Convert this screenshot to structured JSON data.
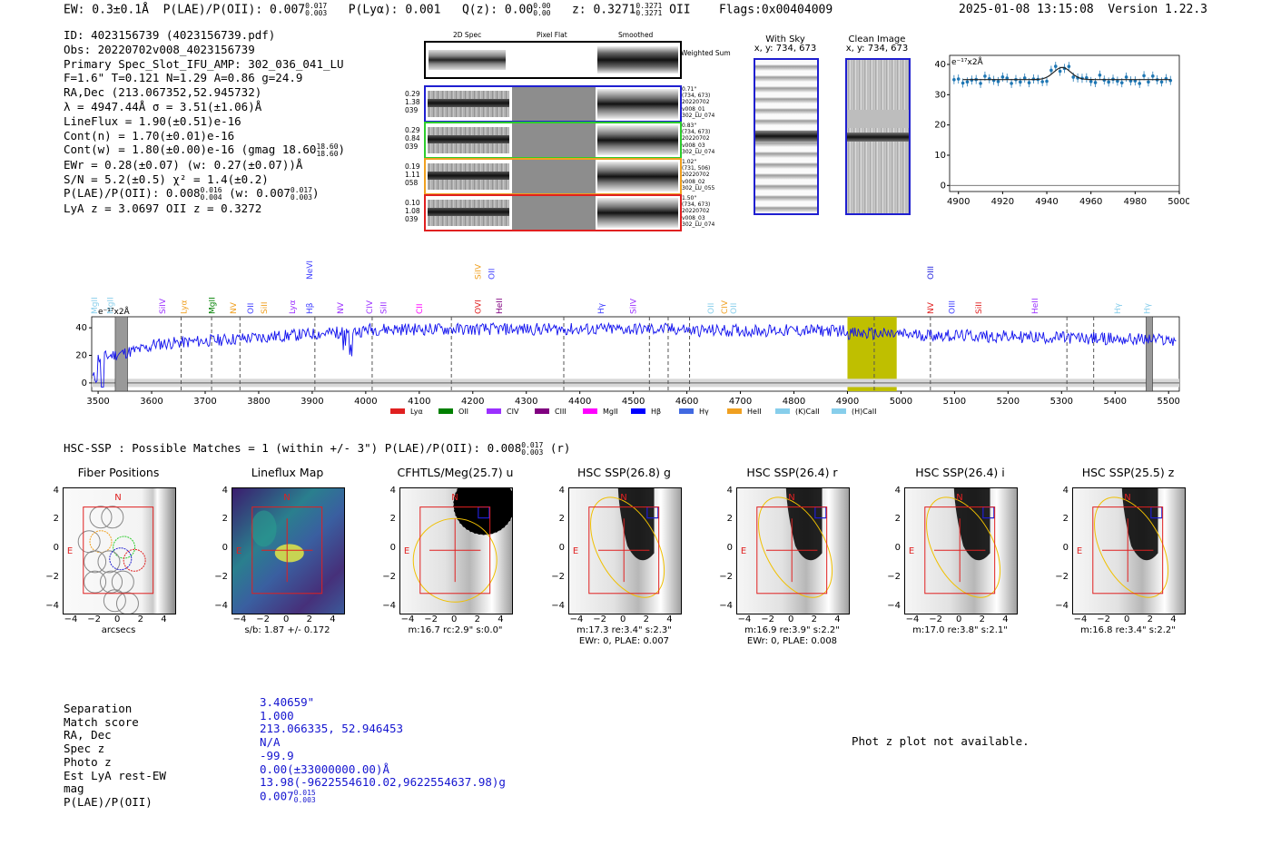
{
  "header": {
    "ew": "EW: 0.3±0.1Å",
    "plae": "P(LAE)/P(OII): 0.007",
    "plae_hi": "0.017",
    "plae_lo": "0.003",
    "plya": "P(Lyα): 0.001",
    "qz": "Q(z): 0.00",
    "qz_hi": "0.00",
    "qz_lo": "0.00",
    "z": "z: 0.3271",
    "z_hi": "0.3271",
    "z_lo": "0.3271",
    "z_line": "OII",
    "flags": "Flags:0x00404009",
    "datetime": "2025-01-08 13:15:08",
    "version": "Version 1.22.3"
  },
  "info": {
    "id": "ID: 4023156739 (4023156739.pdf)",
    "obs": "Obs: 20220702v008_4023156739",
    "primary": "Primary Spec_Slot_IFU_AMP: 302_036_041_LU",
    "params": "F=1.6\" T=0.121 N=1.29 A=0.86 g=24.9",
    "radec": "RA,Dec (213.067352,52.945732)",
    "lambda": "λ = 4947.44Å  σ = 3.51(±1.06)Å",
    "lineflux": "LineFlux = 1.90(±0.51)e-16",
    "contn": "Cont(n) = 1.70(±0.01)e-16",
    "contw": "Cont(w) = 1.80(±0.00)e-16 (gmag 18.60",
    "contw_hi": "18.60",
    "contw_lo": "18.60",
    "ewr": "EWr = 0.28(±0.07) (w: 0.27(±0.07))Å",
    "sn": "S/N = 5.2(±0.5)  χ² = 1.4(±0.2)",
    "plae": "P(LAE)/P(OII): 0.008",
    "plae_hi": "0.016",
    "plae_lo": "0.004",
    "plae_w": "(w: 0.007",
    "plae_w_hi": "0.017",
    "plae_w_lo": "0.003",
    "lya": "LyA z = 3.0697  OII z = 0.3272"
  },
  "cutouts": {
    "col_headers": [
      "2D Spec",
      "Pixel Flat",
      "Smoothed"
    ],
    "weighted_label": "Weighted Sum",
    "rows": [
      {
        "left": [
          "0.29",
          "1.38",
          "039"
        ],
        "right": [
          "0.71\"",
          "(734, 673)",
          "20220702",
          "v008_01",
          "302_LU_074"
        ],
        "color": "#1f1fd0"
      },
      {
        "left": [
          "0.29",
          "0.84",
          "039"
        ],
        "right": [
          "0.83\"",
          "(734, 673)",
          "20220702",
          "v008_03",
          "302_LU_074"
        ],
        "color": "#2ecc2e"
      },
      {
        "left": [
          "0.19",
          "1.11",
          "058"
        ],
        "right": [
          "1.02\"",
          "(731, 506)",
          "20220702",
          "v008_02",
          "302_LU_055"
        ],
        "color": "#f0a020"
      },
      {
        "left": [
          "0.10",
          "1.08",
          "039"
        ],
        "right": [
          "1.50\"",
          "(734, 673)",
          "20220702",
          "v008_03",
          "302_LU_074"
        ],
        "color": "#e02020"
      }
    ],
    "with_sky_title": "With Sky",
    "with_sky_xy": "x, y: 734, 673",
    "clean_title": "Clean Image",
    "clean_xy": "x, y: 734, 673"
  },
  "zoom_chart": {
    "type": "line",
    "ylabel": "e⁻¹⁷x2Å",
    "x_ticks": [
      "4900",
      "4920",
      "4940",
      "4960",
      "4980",
      "5000"
    ],
    "y_ticks": [
      "0",
      "10",
      "20",
      "30",
      "40"
    ],
    "xlim": [
      4896,
      5000
    ],
    "ylim": [
      -2,
      43
    ]
  },
  "spectrum": {
    "ylabel": "e⁻¹⁷x2Å",
    "x_ticks": [
      "3500",
      "3600",
      "3700",
      "3800",
      "3900",
      "4000",
      "4100",
      "4200",
      "4300",
      "4400",
      "4500",
      "4600",
      "4700",
      "4800",
      "4900",
      "5000",
      "5100",
      "5200",
      "5300",
      "5400",
      "5500"
    ],
    "y_ticks": [
      "0",
      "20",
      "40"
    ],
    "lines_row1": [
      {
        "label": "NeVI",
        "x": 3900,
        "color": "#4040ff"
      },
      {
        "label": "SiIV",
        "x": 4215,
        "color": "#f0a020"
      },
      {
        "label": "OII",
        "x": 4240,
        "color": "#4040ff"
      },
      {
        "label": "OIII",
        "x": 5060,
        "color": "#2020dd"
      }
    ],
    "lines_row2": [
      {
        "label": "MgII",
        "x": 3498,
        "color": "#87ceeb"
      },
      {
        "label": "MgII",
        "x": 3528,
        "color": "#87ceeb"
      },
      {
        "label": "SiIV",
        "x": 3625,
        "color": "#9b30ff"
      },
      {
        "label": "Lyα",
        "x": 3665,
        "color": "#f0a020"
      },
      {
        "label": "MgII",
        "x": 3718,
        "color": "#008000"
      },
      {
        "label": "NV",
        "x": 3758,
        "color": "#f0a020"
      },
      {
        "label": "OII",
        "x": 3790,
        "color": "#4040ff"
      },
      {
        "label": "SiII",
        "x": 3815,
        "color": "#f0a020"
      },
      {
        "label": "Lyα",
        "x": 3868,
        "color": "#9b30ff"
      },
      {
        "label": "Hβ",
        "x": 3900,
        "color": "#4040ff"
      },
      {
        "label": "NV",
        "x": 3958,
        "color": "#9b30ff"
      },
      {
        "label": "CIV",
        "x": 4012,
        "color": "#9b30ff"
      },
      {
        "label": "SiII",
        "x": 4038,
        "color": "#9b30ff"
      },
      {
        "label": "CII",
        "x": 4105,
        "color": "#ff00ff"
      },
      {
        "label": "OVI",
        "x": 4215,
        "color": "#e02020"
      },
      {
        "label": "HeII",
        "x": 4255,
        "color": "#800080"
      },
      {
        "label": "Hγ",
        "x": 4445,
        "color": "#4040ff"
      },
      {
        "label": "SiIV",
        "x": 4505,
        "color": "#9b30ff"
      },
      {
        "label": "OII",
        "x": 4650,
        "color": "#87ceeb"
      },
      {
        "label": "CIV",
        "x": 4675,
        "color": "#f0a020"
      },
      {
        "label": "OII",
        "x": 4692,
        "color": "#87ceeb"
      },
      {
        "label": "NV",
        "x": 5060,
        "color": "#e02020"
      },
      {
        "label": "OIII",
        "x": 5100,
        "color": "#4040ff"
      },
      {
        "label": "SiII",
        "x": 5150,
        "color": "#e02020"
      },
      {
        "label": "HeII",
        "x": 5255,
        "color": "#9b30ff"
      },
      {
        "label": "Hγ",
        "x": 5410,
        "color": "#87ceeb"
      },
      {
        "label": "Hγ",
        "x": 5465,
        "color": "#87ceeb"
      }
    ],
    "legend": [
      {
        "label": "Lyα",
        "color": "#e02020"
      },
      {
        "label": "OII",
        "color": "#008000"
      },
      {
        "label": "CIV",
        "color": "#9b30ff"
      },
      {
        "label": "CIII",
        "color": "#800080"
      },
      {
        "label": "MgII",
        "color": "#ff00ff"
      },
      {
        "label": "Hβ",
        "color": "#0000ff"
      },
      {
        "label": "Hγ",
        "color": "#4169e1"
      },
      {
        "label": "HeII",
        "color": "#f0a020"
      },
      {
        "label": "(K)CaII",
        "color": "#87ceeb"
      },
      {
        "label": "(H)CaII",
        "color": "#87ceeb"
      }
    ]
  },
  "matches": {
    "text": "HSC-SSP : Possible Matches = 1 (within +/- 3\")  P(LAE)/P(OII): 0.008",
    "hi": "0.017",
    "lo": "0.003",
    "suffix": "(r)"
  },
  "panels": [
    {
      "title": "Fiber Positions",
      "sub1": "arcsecs",
      "sub2": ""
    },
    {
      "title": "Lineflux Map",
      "sub1": "s/b: 1.87 +/- 0.172",
      "sub2": ""
    },
    {
      "title": "CFHTLS/Meg(25.7) u",
      "sub1": "m:16.7 rc:2.9\"  s:0.0\"",
      "sub2": ""
    },
    {
      "title": "HSC SSP(26.8) g",
      "sub1": "m:17.3  re:3.4\"  s:2.3\"",
      "sub2": "EWr: 0, PLAE: 0.007"
    },
    {
      "title": "HSC SSP(26.4) r",
      "sub1": "m:16.9  re:3.9\"  s:2.2\"",
      "sub2": "EWr: 0, PLAE: 0.008"
    },
    {
      "title": "HSC SSP(26.4) i",
      "sub1": "m:17.0  re:3.8\"  s:2.1\"",
      "sub2": ""
    },
    {
      "title": "HSC SSP(25.5) z",
      "sub1": "m:16.8  re:3.4\"  s:2.2\"",
      "sub2": ""
    }
  ],
  "panel_ticks": {
    "x": [
      "−4",
      "−2",
      "0",
      "2",
      "4"
    ],
    "y": [
      "4",
      "2",
      "0",
      "−2",
      "−4"
    ],
    "n": "N",
    "e": "E"
  },
  "match_table": {
    "keys": [
      "Separation",
      "Match score",
      "RA, Dec",
      "Spec z",
      "Photo z",
      "Est LyA rest-EW",
      "mag",
      "P(LAE)/P(OII)"
    ],
    "values": [
      "3.40659\"",
      "1.000",
      "213.066335, 52.946453",
      "N/A",
      "-99.9",
      "0.00(±33000000.00)Å",
      "13.98(-9622554610.02,9622554637.98)g",
      "0.007"
    ],
    "plae_hi": "0.015",
    "plae_lo": "0.003"
  },
  "photz_note": "Phot z plot not available."
}
